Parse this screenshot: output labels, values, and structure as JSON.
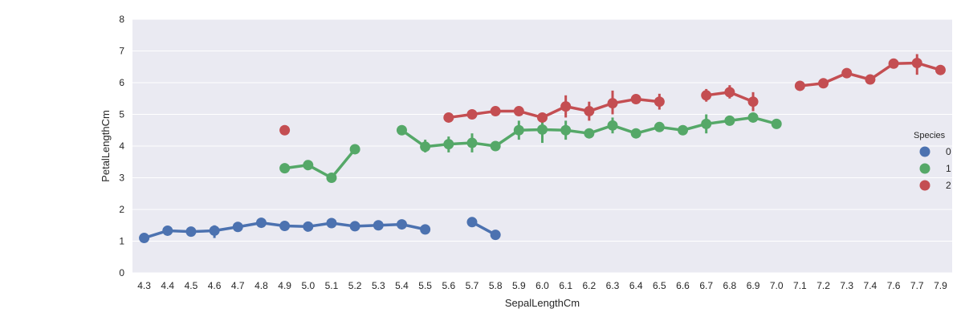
{
  "chart_data": {
    "type": "line",
    "plot_style": "point-plot-with-error-bars",
    "xlabel": "SepalLengthCm",
    "ylabel": "PetalLengthCm",
    "ylim": [
      0,
      8
    ],
    "yticks": [
      "0",
      "1",
      "2",
      "3",
      "4",
      "5",
      "6",
      "7",
      "8"
    ],
    "categories": [
      "4.3",
      "4.4",
      "4.5",
      "4.6",
      "4.7",
      "4.8",
      "4.9",
      "5.0",
      "5.1",
      "5.2",
      "5.3",
      "5.4",
      "5.5",
      "5.6",
      "5.7",
      "5.8",
      "5.9",
      "6.0",
      "6.1",
      "6.2",
      "6.3",
      "6.4",
      "6.5",
      "6.6",
      "6.7",
      "6.8",
      "6.9",
      "7.0",
      "7.1",
      "7.2",
      "7.3",
      "7.4",
      "7.6",
      "7.7",
      "7.9"
    ],
    "grid": true,
    "background_color": "#EAEAF2",
    "legend": {
      "title": "Species",
      "position": "right"
    },
    "series": [
      {
        "name": "0",
        "color": "#4C72B0",
        "values": [
          1.1,
          1.33,
          1.3,
          1.33,
          1.45,
          1.58,
          1.48,
          1.46,
          1.57,
          1.47,
          1.5,
          1.53,
          1.37,
          null,
          1.6,
          1.2,
          null,
          null,
          null,
          null,
          null,
          null,
          null,
          null,
          null,
          null,
          null,
          null,
          null,
          null,
          null,
          null,
          null,
          null,
          null
        ],
        "errors": [
          null,
          [
            1.25,
            1.42
          ],
          null,
          [
            1.1,
            1.5
          ],
          [
            1.35,
            1.6
          ],
          [
            1.5,
            1.68
          ],
          [
            1.4,
            1.55
          ],
          [
            1.38,
            1.55
          ],
          [
            1.48,
            1.65
          ],
          [
            1.42,
            1.52
          ],
          null,
          [
            1.45,
            1.62
          ],
          [
            1.3,
            1.42
          ],
          null,
          null,
          null,
          null,
          null,
          null,
          null,
          null,
          null,
          null,
          null,
          null,
          null,
          null,
          null,
          null,
          null,
          null,
          null,
          null,
          null,
          null
        ]
      },
      {
        "name": "1",
        "color": "#55A868",
        "values": [
          null,
          null,
          null,
          null,
          null,
          null,
          3.3,
          3.4,
          3.0,
          3.9,
          null,
          4.5,
          3.98,
          4.06,
          4.1,
          4.0,
          4.5,
          4.52,
          4.5,
          4.4,
          4.65,
          4.4,
          4.6,
          4.5,
          4.7,
          4.8,
          4.9,
          4.7,
          null,
          null,
          null,
          null,
          null,
          null,
          null
        ],
        "errors": [
          null,
          null,
          null,
          null,
          null,
          null,
          null,
          null,
          null,
          null,
          null,
          null,
          [
            3.8,
            4.2
          ],
          [
            3.8,
            4.3
          ],
          [
            3.8,
            4.4
          ],
          null,
          [
            4.2,
            4.8
          ],
          [
            4.1,
            4.9
          ],
          [
            4.2,
            4.8
          ],
          null,
          [
            4.4,
            4.9
          ],
          null,
          null,
          null,
          [
            4.4,
            5.0
          ],
          null,
          null,
          null,
          null,
          null,
          null,
          null,
          null,
          null,
          null
        ]
      },
      {
        "name": "2",
        "color": "#C44E52",
        "values": [
          null,
          null,
          null,
          null,
          null,
          null,
          4.5,
          null,
          null,
          null,
          null,
          null,
          null,
          4.9,
          5.0,
          5.1,
          5.1,
          4.9,
          5.25,
          5.1,
          5.35,
          5.48,
          5.4,
          null,
          5.6,
          5.7,
          5.4,
          null,
          5.9,
          5.98,
          6.3,
          6.1,
          6.6,
          6.62,
          6.4
        ],
        "errors": [
          null,
          null,
          null,
          null,
          null,
          null,
          null,
          null,
          null,
          null,
          null,
          null,
          null,
          null,
          null,
          null,
          null,
          null,
          [
            4.9,
            5.6
          ],
          [
            4.8,
            5.4
          ],
          [
            5.0,
            5.75
          ],
          null,
          [
            5.15,
            5.65
          ],
          null,
          [
            5.4,
            5.8
          ],
          [
            5.5,
            5.92
          ],
          [
            5.1,
            5.7
          ],
          null,
          null,
          [
            5.9,
            6.08
          ],
          null,
          null,
          null,
          [
            6.25,
            6.9
          ],
          null
        ]
      }
    ]
  }
}
